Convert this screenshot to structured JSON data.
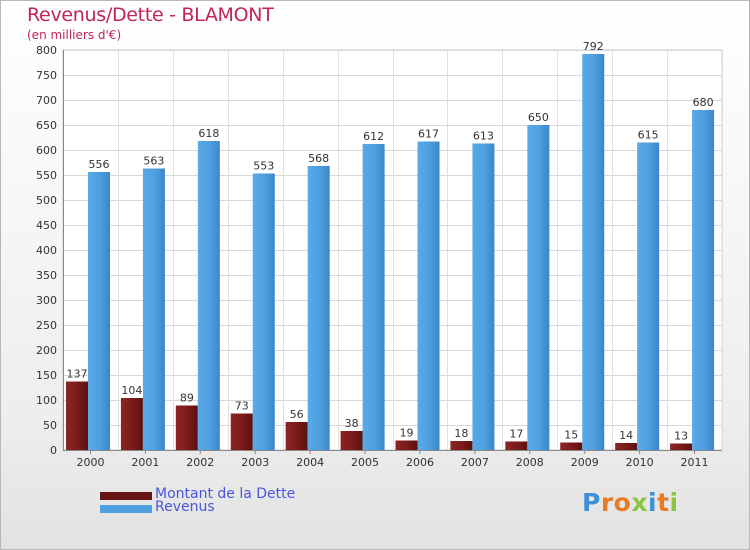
{
  "chart_data": {
    "type": "bar",
    "title": "Revenus/Dette - BLAMONT",
    "subtitle": "(en milliers d'€)",
    "categories": [
      "2000",
      "2001",
      "2002",
      "2003",
      "2004",
      "2005",
      "2006",
      "2007",
      "2008",
      "2009",
      "2010",
      "2011"
    ],
    "series": [
      {
        "name": "Montant de la Dette",
        "color": "#7a1a1a",
        "values": [
          137,
          104,
          89,
          73,
          56,
          38,
          19,
          18,
          17,
          15,
          14,
          13
        ]
      },
      {
        "name": "Revenus",
        "color": "#4e9fe0",
        "values": [
          556,
          563,
          618,
          553,
          568,
          612,
          617,
          613,
          650,
          792,
          615,
          680
        ]
      }
    ],
    "ylim": [
      0,
      800
    ],
    "yticks": [
      0,
      50,
      100,
      150,
      200,
      250,
      300,
      350,
      400,
      450,
      500,
      550,
      600,
      650,
      700,
      750,
      800
    ],
    "grid": true,
    "legend_position": "bottom-left"
  },
  "logo": {
    "letters": [
      {
        "ch": "P",
        "color": "#3d8fd6"
      },
      {
        "ch": "r",
        "color": "#e87b23"
      },
      {
        "ch": "o",
        "color": "#e87b23"
      },
      {
        "ch": "x",
        "color": "#8cc63f"
      },
      {
        "ch": "i",
        "color": "#3d8fd6"
      },
      {
        "ch": "t",
        "color": "#e87b23"
      },
      {
        "ch": "i",
        "color": "#8cc63f"
      }
    ]
  }
}
